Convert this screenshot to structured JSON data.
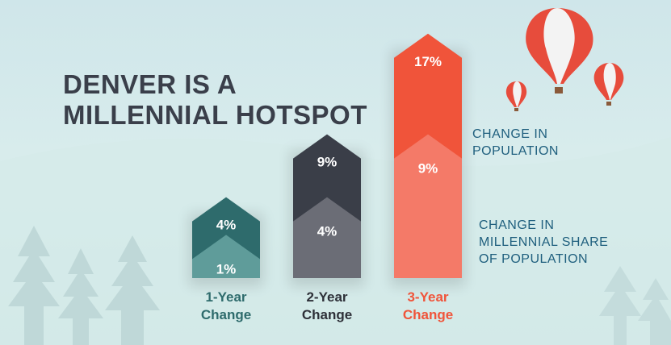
{
  "title_lines": [
    "DENVER IS A",
    "MILLENNIAL HOTSPOT"
  ],
  "legend": {
    "population": [
      "CHANGE IN",
      "POPULATION"
    ],
    "millennial": [
      "CHANGE IN",
      "MILLENNIAL SHARE",
      "OF POPULATION"
    ]
  },
  "colors": {
    "text_dark": "#3a3f4a",
    "legend_text": "#1f5f7e",
    "balloon": "#e74c3c",
    "tree": "#bcd5d6"
  },
  "chart_data": {
    "type": "bar",
    "categories": [
      "1-Year Change",
      "2-Year Change",
      "3-Year Change"
    ],
    "category_lines": [
      [
        "1-Year",
        "Change"
      ],
      [
        "2-Year",
        "Change"
      ],
      [
        "3-Year",
        "Change"
      ]
    ],
    "series": [
      {
        "name": "CHANGE IN POPULATION",
        "values": [
          4,
          9,
          17
        ],
        "labels": [
          "4%",
          "9%",
          "17%"
        ]
      },
      {
        "name": "CHANGE IN MILLENNIAL SHARE OF POPULATION",
        "values": [
          1,
          4,
          9
        ],
        "labels": [
          "1%",
          "4%",
          "9%"
        ]
      }
    ],
    "colors": [
      {
        "dark": "#2e6b6c",
        "light": "#5f9c9a",
        "label": "#2e6b6c"
      },
      {
        "dark": "#3a3e48",
        "light": "#6b6d76",
        "label": "#2e3038"
      },
      {
        "dark": "#f0543a",
        "light": "#f47a68",
        "label": "#f0543a"
      }
    ],
    "unit": "%"
  }
}
